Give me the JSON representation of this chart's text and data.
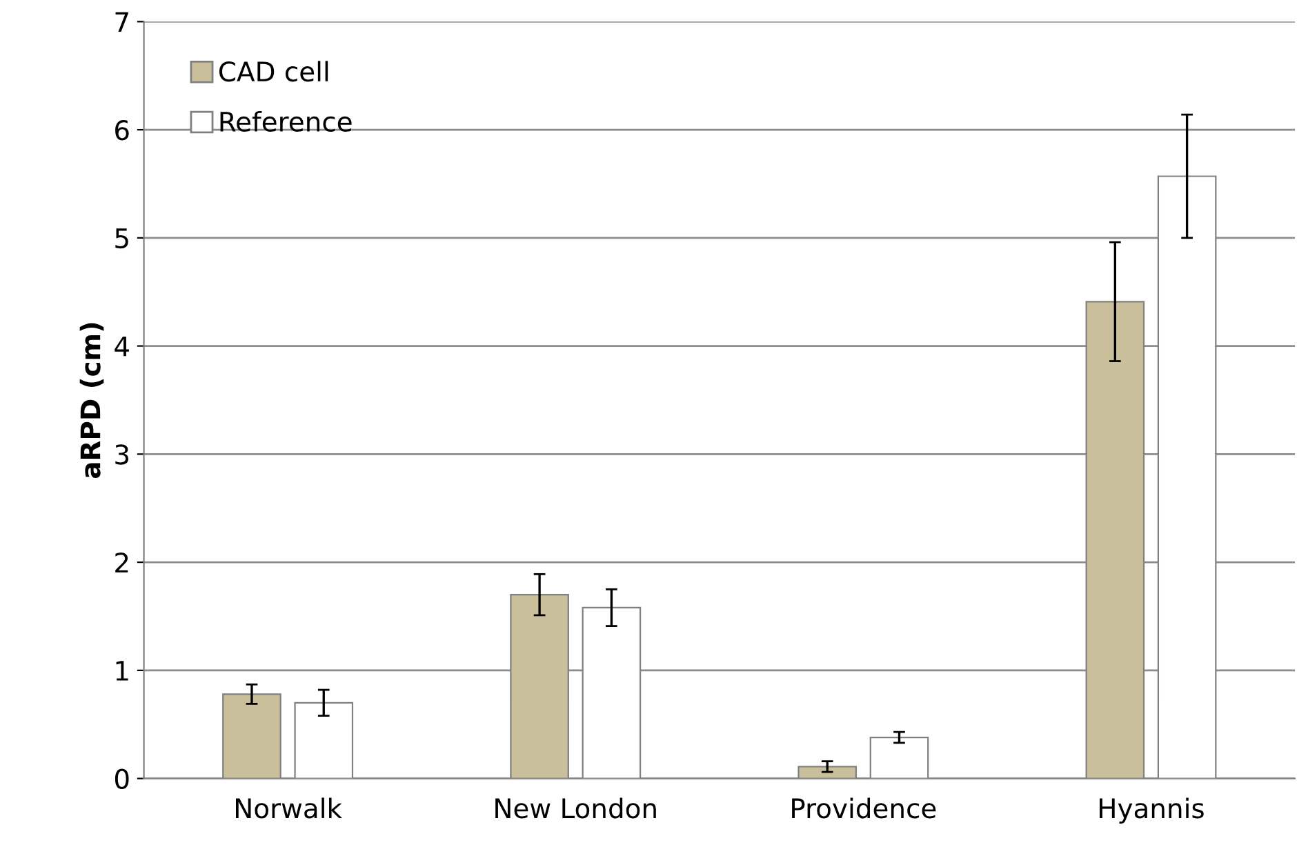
{
  "chart_data": {
    "type": "bar",
    "ylabel": "aRPD (cm)",
    "categories": [
      "Norwalk",
      "New London",
      "Providence",
      "Hyannis"
    ],
    "series": [
      {
        "name": "CAD cell",
        "color": "#c9bf9a",
        "values": [
          0.78,
          1.7,
          0.11,
          4.41
        ],
        "errors": [
          0.09,
          0.19,
          0.05,
          0.55
        ]
      },
      {
        "name": "Reference",
        "color": "#ffffff",
        "values": [
          0.7,
          1.58,
          0.38,
          5.57
        ],
        "errors": [
          0.12,
          0.17,
          0.05,
          0.57
        ]
      }
    ],
    "ylim": [
      0,
      7
    ],
    "yticks": [
      0,
      1,
      2,
      3,
      4,
      5,
      6,
      7
    ],
    "grid": "y",
    "legend": "top left"
  }
}
